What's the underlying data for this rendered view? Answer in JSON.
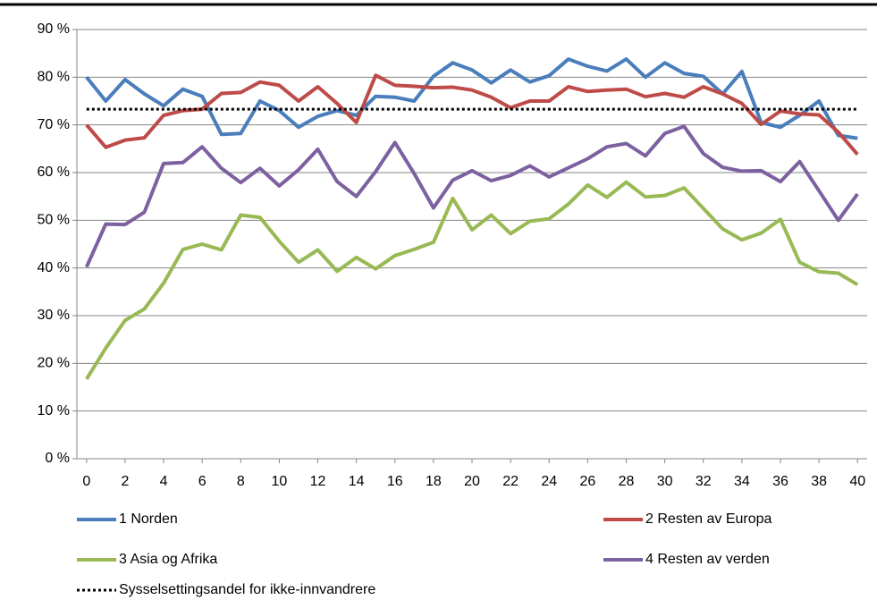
{
  "chart_data": {
    "type": "line",
    "x": [
      0,
      1,
      2,
      3,
      4,
      5,
      6,
      7,
      8,
      9,
      10,
      11,
      12,
      13,
      14,
      15,
      16,
      17,
      18,
      19,
      20,
      21,
      22,
      23,
      24,
      25,
      26,
      27,
      28,
      29,
      30,
      31,
      32,
      33,
      34,
      35,
      36,
      37,
      38,
      39,
      40
    ],
    "xlim": [
      -0.5,
      40.5
    ],
    "xticks": [
      0,
      2,
      4,
      6,
      8,
      10,
      12,
      14,
      16,
      18,
      20,
      22,
      24,
      26,
      28,
      30,
      32,
      34,
      36,
      38,
      40
    ],
    "ylim": [
      0,
      90
    ],
    "yticks": [
      {
        "value": 0,
        "label": "0 %"
      },
      {
        "value": 10,
        "label": "10 %"
      },
      {
        "value": 20,
        "label": "20 %"
      },
      {
        "value": 30,
        "label": "30 %"
      },
      {
        "value": 40,
        "label": "40 %"
      },
      {
        "value": 50,
        "label": "50 %"
      },
      {
        "value": 60,
        "label": "60 %"
      },
      {
        "value": 70,
        "label": "70 %"
      },
      {
        "value": 80,
        "label": "80 %"
      },
      {
        "value": 90,
        "label": "90 %"
      }
    ],
    "grid": true,
    "series": [
      {
        "name": "1 Norden",
        "color": "#4a7ebb",
        "values": [
          80,
          75,
          79.5,
          76.5,
          74,
          77.5,
          76,
          68,
          68.2,
          75,
          73,
          69.5,
          71.8,
          73,
          72,
          76,
          75.8,
          75,
          80.2,
          83,
          81.5,
          78.8,
          81.5,
          79,
          80.3,
          83.8,
          82.3,
          81.3,
          83.8,
          80,
          83,
          80.8,
          80.2,
          76.5,
          81.2,
          70.5,
          69.5,
          72,
          75,
          67.8,
          67.2
        ]
      },
      {
        "name": "2 Resten av Europa",
        "color": "#be4b48",
        "values": [
          70,
          65.3,
          66.8,
          67.3,
          72,
          73,
          73.3,
          76.6,
          76.8,
          79,
          78.3,
          75,
          78,
          74.5,
          70.5,
          80.4,
          78.3,
          78.1,
          77.8,
          77.9,
          77.3,
          75.8,
          73.6,
          75,
          75,
          78,
          77,
          77.3,
          77.5,
          75.9,
          76.6,
          75.8,
          78,
          76.5,
          74.5,
          70.1,
          72.9,
          72.3,
          72.1,
          68.5,
          63.8
        ]
      },
      {
        "name": "3 Asia og Afrika",
        "color": "#98b954",
        "values": [
          16.7,
          23.2,
          29,
          31.4,
          36.8,
          43.9,
          45,
          43.8,
          51.1,
          50.6,
          45.6,
          41.2,
          43.8,
          39.3,
          42.2,
          39.8,
          42.6,
          43.9,
          45.4,
          54.6,
          48,
          51.1,
          47.2,
          49.8,
          50.3,
          53.4,
          57.4,
          54.8,
          58,
          54.9,
          55.2,
          56.8,
          52.5,
          48.2,
          45.9,
          47.3,
          50.2,
          41.2,
          39.2,
          38.9,
          36.5
        ]
      },
      {
        "name": "4 Resten av verden",
        "color": "#7d60a0",
        "values": [
          40.2,
          49.2,
          49.1,
          51.7,
          61.9,
          62.1,
          65.4,
          60.9,
          57.9,
          60.9,
          57.2,
          60.6,
          64.9,
          58.1,
          55,
          60.2,
          66.3,
          59.8,
          52.6,
          58.4,
          60.4,
          58.3,
          59.4,
          61.4,
          59.1,
          61,
          62.9,
          65.4,
          66.1,
          63.5,
          68.2,
          69.7,
          64,
          61.1,
          60.3,
          60.4,
          58.1,
          62.3,
          56.2,
          50,
          55.5
        ]
      },
      {
        "name": "Sysselsettingsandel for ikke-innvandrere",
        "color": "#000000",
        "style": "dotted",
        "values": [
          73.3,
          73.3,
          73.3,
          73.3,
          73.3,
          73.3,
          73.3,
          73.3,
          73.3,
          73.3,
          73.3,
          73.3,
          73.3,
          73.3,
          73.3,
          73.3,
          73.3,
          73.3,
          73.3,
          73.3,
          73.3,
          73.3,
          73.3,
          73.3,
          73.3,
          73.3,
          73.3,
          73.3,
          73.3,
          73.3,
          73.3,
          73.3,
          73.3,
          73.3,
          73.3,
          73.3,
          73.3,
          73.3,
          73.3,
          73.3,
          73.3
        ]
      }
    ]
  }
}
